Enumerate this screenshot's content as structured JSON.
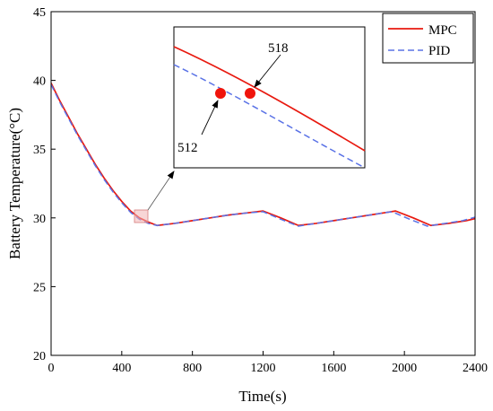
{
  "chart_data": {
    "type": "line",
    "title": "",
    "xlabel": "Time(s)",
    "ylabel": "Battery Temperature(°C)",
    "xlim": [
      0,
      2400
    ],
    "ylim": [
      20,
      45
    ],
    "xticks": [
      0,
      400,
      800,
      1200,
      1600,
      2000,
      2400
    ],
    "yticks": [
      20,
      25,
      30,
      35,
      40,
      45
    ],
    "grid": false,
    "legend_position": "top-right",
    "series": [
      {
        "name": "MPC",
        "color": "#e8190f",
        "style": "solid",
        "x": [
          0,
          50,
          100,
          150,
          200,
          250,
          300,
          350,
          400,
          450,
          500,
          550,
          600,
          700,
          800,
          900,
          1000,
          1100,
          1200,
          1300,
          1400,
          1500,
          1600,
          1700,
          1800,
          1900,
          1950,
          2050,
          2150,
          2250,
          2350,
          2400
        ],
        "y": [
          39.8,
          38.5,
          37.3,
          36.1,
          35.0,
          33.9,
          32.9,
          32.0,
          31.2,
          30.5,
          30.0,
          29.7,
          29.45,
          29.6,
          29.8,
          30.0,
          30.2,
          30.35,
          30.5,
          30.0,
          29.45,
          29.6,
          29.8,
          30.0,
          30.2,
          30.4,
          30.5,
          30.0,
          29.45,
          29.6,
          29.8,
          29.95
        ]
      },
      {
        "name": "PID",
        "color": "#5a72e6",
        "style": "dashed",
        "x": [
          0,
          50,
          100,
          150,
          200,
          250,
          300,
          350,
          400,
          450,
          500,
          550,
          600,
          700,
          800,
          900,
          1000,
          1100,
          1200,
          1300,
          1400,
          1500,
          1600,
          1700,
          1800,
          1900,
          1930,
          2030,
          2130,
          2230,
          2330,
          2400
        ],
        "y": [
          39.7,
          38.4,
          37.2,
          36.0,
          34.9,
          33.8,
          32.8,
          31.9,
          31.1,
          30.4,
          29.9,
          29.6,
          29.45,
          29.6,
          29.8,
          30.0,
          30.2,
          30.35,
          30.45,
          29.9,
          29.4,
          29.6,
          29.8,
          30.0,
          30.2,
          30.4,
          30.45,
          29.9,
          29.4,
          29.6,
          29.8,
          30.05
        ]
      }
    ],
    "inset": {
      "annotations": [
        {
          "label": "518",
          "target": "MPC"
        },
        {
          "label": "512",
          "target": "PID"
        }
      ]
    }
  }
}
